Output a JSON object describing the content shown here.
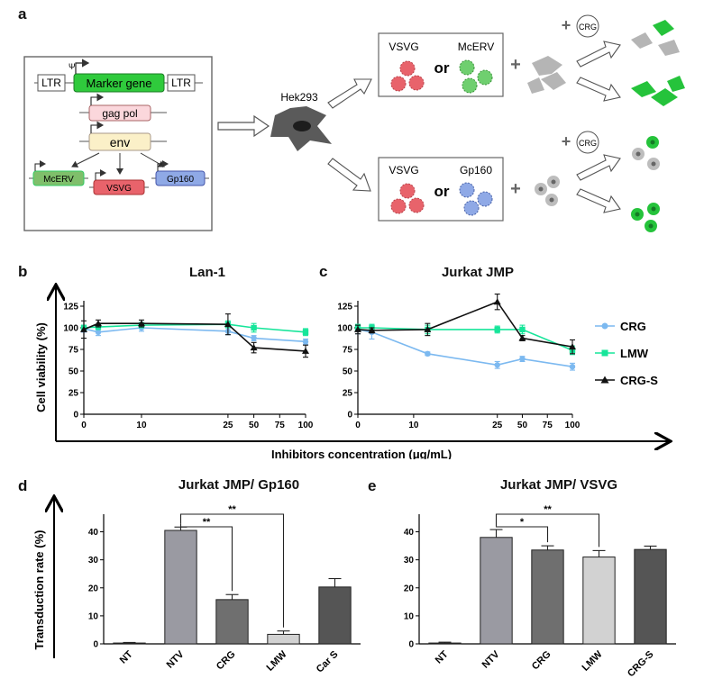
{
  "panel_labels": {
    "a": "a",
    "b": "b",
    "c": "c",
    "d": "d",
    "e": "e"
  },
  "schematic": {
    "ltr_left": "LTR",
    "psi": "Ψ",
    "marker_gene": "Marker gene",
    "ltr_right": "LTR",
    "gag_pol": "gag pol",
    "env": "env",
    "mcerv": "McERV",
    "vsvg": "VSVG",
    "gp160": "Gp160",
    "cell_line": "Hek293",
    "top_box": {
      "left": "VSVG",
      "or": "or",
      "right": "McERV"
    },
    "bottom_box": {
      "left": "VSVG",
      "or": "or",
      "right": "Gp160"
    },
    "plus": "+",
    "crg_badge": "CRG",
    "colors": {
      "green": "#2ecc40",
      "red": "#e8636b",
      "mint": "#4cd964",
      "blue": "#7ea6e0"
    }
  },
  "line_axes": {
    "ylabel": "Cell viability (%)",
    "xlabel": "Inhibitors concentration (μg/mL)"
  },
  "legend": [
    {
      "name": "CRG",
      "color": "#7cb9f0",
      "marker": "circle"
    },
    {
      "name": "LMW",
      "color": "#17e59a",
      "marker": "square"
    },
    {
      "name": "CRG-S",
      "color": "#111111",
      "marker": "triangle"
    }
  ],
  "chart_data": [
    {
      "id": "b",
      "type": "line",
      "title": "Lan-1",
      "xticks": [
        "0",
        "10",
        "25",
        "50",
        "75",
        "100"
      ],
      "ylim": [
        0,
        125
      ],
      "yticks": [
        0,
        25,
        50,
        75,
        100,
        125
      ],
      "x_scale": "broken",
      "series": [
        {
          "name": "CRG",
          "x": [
            0,
            2.5,
            10,
            25,
            50,
            100
          ],
          "y": [
            99,
            95,
            100,
            96,
            88,
            84
          ],
          "err": [
            4,
            4,
            4,
            4,
            3,
            3
          ]
        },
        {
          "name": "LMW",
          "x": [
            0,
            2.5,
            10,
            25,
            50,
            100
          ],
          "y": [
            100,
            101,
            103,
            104,
            100,
            95
          ],
          "err": [
            3,
            3,
            3,
            4,
            5,
            4
          ]
        },
        {
          "name": "CRG-S",
          "x": [
            0,
            2.5,
            10,
            25,
            50,
            100
          ],
          "y": [
            98,
            105,
            105,
            104,
            77,
            73
          ],
          "err": [
            10,
            4,
            4,
            12,
            6,
            7
          ]
        }
      ]
    },
    {
      "id": "c",
      "type": "line",
      "title": "Jurkat JMP",
      "xticks": [
        "0",
        "10",
        "25",
        "50",
        "75",
        "100"
      ],
      "ylim": [
        0,
        125
      ],
      "yticks": [
        0,
        25,
        50,
        75,
        100,
        125
      ],
      "x_scale": "broken",
      "series": [
        {
          "name": "CRG",
          "x": [
            0,
            2.5,
            12.5,
            25,
            50,
            100
          ],
          "y": [
            98,
            95,
            70,
            57,
            64,
            55
          ],
          "err": [
            5,
            8,
            2,
            4,
            3,
            4
          ]
        },
        {
          "name": "LMW",
          "x": [
            0,
            2.5,
            12.5,
            25,
            50,
            100
          ],
          "y": [
            100,
            100,
            98,
            98,
            98,
            74
          ],
          "err": [
            4,
            4,
            5,
            4,
            5,
            5
          ]
        },
        {
          "name": "CRG-S",
          "x": [
            0,
            2.5,
            12.5,
            25,
            50,
            100
          ],
          "y": [
            98,
            97,
            98,
            130,
            88,
            78
          ],
          "err": [
            5,
            3,
            7,
            9,
            3,
            8
          ]
        }
      ]
    },
    {
      "id": "d",
      "type": "bar",
      "title": "Jurkat JMP/ Gp160",
      "ylabel": "Transduction rate (%)",
      "categories": [
        "NT",
        "NTV",
        "CRG",
        "LMW",
        "Car S"
      ],
      "values": [
        0.3,
        40.5,
        15.8,
        3.4,
        20.3
      ],
      "err": [
        0.2,
        1.2,
        1.8,
        1.2,
        3.0
      ],
      "colors": [
        "#9a9aa2",
        "#9a9aa2",
        "#6f6f6f",
        "#d2d2d2",
        "#555555"
      ],
      "ylim": [
        0,
        45
      ],
      "yticks": [
        0,
        10,
        20,
        30,
        40
      ],
      "significance": [
        {
          "from": 1,
          "to": 2,
          "label": "**"
        },
        {
          "from": 1,
          "to": 3,
          "label": "**"
        }
      ]
    },
    {
      "id": "e",
      "type": "bar",
      "title": "Jurkat JMP/ VSVG",
      "categories": [
        "NT",
        "NTV",
        "CRG",
        "LMW",
        "CRG-S"
      ],
      "values": [
        0.3,
        38,
        33.5,
        31,
        33.7
      ],
      "err": [
        0.3,
        2.8,
        1.5,
        2.3,
        1.2
      ],
      "colors": [
        "#9a9aa2",
        "#9a9aa2",
        "#6f6f6f",
        "#d2d2d2",
        "#555555"
      ],
      "ylim": [
        0,
        45
      ],
      "yticks": [
        0,
        10,
        20,
        30,
        40
      ],
      "significance": [
        {
          "from": 1,
          "to": 2,
          "label": "*"
        },
        {
          "from": 1,
          "to": 3,
          "label": "**"
        }
      ]
    }
  ]
}
